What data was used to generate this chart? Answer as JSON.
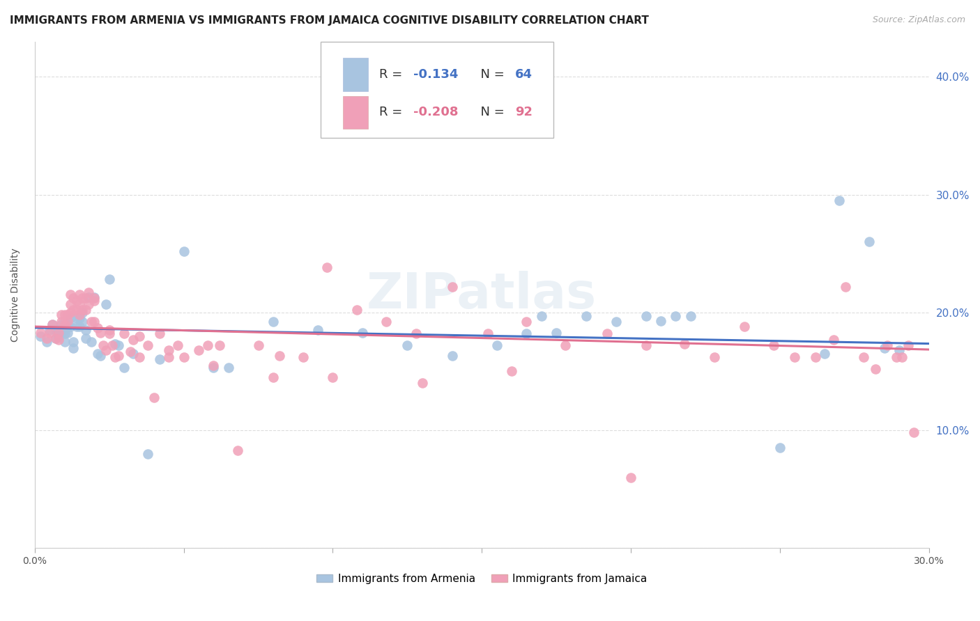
{
  "title": "IMMIGRANTS FROM ARMENIA VS IMMIGRANTS FROM JAMAICA COGNITIVE DISABILITY CORRELATION CHART",
  "source": "Source: ZipAtlas.com",
  "ylabel": "Cognitive Disability",
  "ytick_values": [
    0.0,
    0.1,
    0.2,
    0.3,
    0.4
  ],
  "ytick_labels": [
    "",
    "10.0%",
    "20.0%",
    "30.0%",
    "40.0%"
  ],
  "xtick_values": [
    0.0,
    0.05,
    0.1,
    0.15,
    0.2,
    0.25,
    0.3
  ],
  "xlim": [
    0.0,
    0.3
  ],
  "ylim": [
    0.0,
    0.43
  ],
  "armenia_color": "#a8c4e0",
  "jamaica_color": "#f0a0b8",
  "armenia_line_color": "#4472c4",
  "jamaica_line_color": "#e07090",
  "armenia_R": -0.134,
  "armenia_N": 64,
  "jamaica_R": -0.208,
  "jamaica_N": 92,
  "watermark": "ZIPatlas",
  "armenia_x": [
    0.002,
    0.004,
    0.005,
    0.006,
    0.007,
    0.007,
    0.008,
    0.008,
    0.009,
    0.009,
    0.01,
    0.01,
    0.01,
    0.011,
    0.011,
    0.012,
    0.012,
    0.013,
    0.013,
    0.014,
    0.014,
    0.015,
    0.015,
    0.016,
    0.016,
    0.017,
    0.017,
    0.018,
    0.019,
    0.02,
    0.021,
    0.022,
    0.024,
    0.025,
    0.027,
    0.028,
    0.03,
    0.033,
    0.038,
    0.042,
    0.05,
    0.06,
    0.065,
    0.08,
    0.095,
    0.11,
    0.125,
    0.14,
    0.155,
    0.165,
    0.17,
    0.175,
    0.185,
    0.195,
    0.205,
    0.21,
    0.215,
    0.22,
    0.25,
    0.265,
    0.27,
    0.28,
    0.285,
    0.29
  ],
  "armenia_y": [
    0.18,
    0.175,
    0.185,
    0.19,
    0.185,
    0.178,
    0.185,
    0.18,
    0.19,
    0.183,
    0.185,
    0.182,
    0.175,
    0.19,
    0.183,
    0.195,
    0.188,
    0.175,
    0.17,
    0.195,
    0.188,
    0.195,
    0.188,
    0.2,
    0.192,
    0.185,
    0.178,
    0.213,
    0.175,
    0.213,
    0.165,
    0.163,
    0.207,
    0.228,
    0.173,
    0.172,
    0.153,
    0.165,
    0.08,
    0.16,
    0.252,
    0.153,
    0.153,
    0.192,
    0.185,
    0.183,
    0.172,
    0.163,
    0.172,
    0.182,
    0.197,
    0.183,
    0.197,
    0.192,
    0.197,
    0.193,
    0.197,
    0.197,
    0.085,
    0.165,
    0.295,
    0.26,
    0.17,
    0.168
  ],
  "jamaica_x": [
    0.002,
    0.004,
    0.005,
    0.006,
    0.007,
    0.008,
    0.008,
    0.009,
    0.009,
    0.01,
    0.01,
    0.011,
    0.011,
    0.012,
    0.012,
    0.013,
    0.013,
    0.014,
    0.014,
    0.015,
    0.015,
    0.016,
    0.016,
    0.017,
    0.017,
    0.018,
    0.018,
    0.019,
    0.02,
    0.02,
    0.021,
    0.022,
    0.023,
    0.024,
    0.025,
    0.026,
    0.027,
    0.028,
    0.03,
    0.032,
    0.033,
    0.035,
    0.038,
    0.04,
    0.042,
    0.045,
    0.048,
    0.05,
    0.055,
    0.058,
    0.062,
    0.068,
    0.075,
    0.082,
    0.09,
    0.098,
    0.108,
    0.118,
    0.128,
    0.14,
    0.152,
    0.165,
    0.178,
    0.192,
    0.205,
    0.218,
    0.228,
    0.238,
    0.248,
    0.255,
    0.262,
    0.268,
    0.272,
    0.278,
    0.282,
    0.286,
    0.289,
    0.291,
    0.293,
    0.295,
    0.012,
    0.015,
    0.02,
    0.025,
    0.035,
    0.045,
    0.06,
    0.08,
    0.1,
    0.13,
    0.16,
    0.2
  ],
  "jamaica_y": [
    0.183,
    0.178,
    0.183,
    0.19,
    0.178,
    0.183,
    0.177,
    0.198,
    0.192,
    0.198,
    0.19,
    0.198,
    0.193,
    0.207,
    0.2,
    0.212,
    0.202,
    0.21,
    0.202,
    0.207,
    0.198,
    0.212,
    0.202,
    0.212,
    0.202,
    0.217,
    0.207,
    0.192,
    0.212,
    0.192,
    0.187,
    0.183,
    0.172,
    0.168,
    0.182,
    0.172,
    0.162,
    0.163,
    0.182,
    0.167,
    0.177,
    0.162,
    0.172,
    0.128,
    0.182,
    0.162,
    0.172,
    0.162,
    0.168,
    0.172,
    0.172,
    0.083,
    0.172,
    0.163,
    0.162,
    0.238,
    0.202,
    0.192,
    0.182,
    0.222,
    0.182,
    0.192,
    0.172,
    0.182,
    0.172,
    0.173,
    0.162,
    0.188,
    0.172,
    0.162,
    0.162,
    0.177,
    0.222,
    0.162,
    0.152,
    0.172,
    0.162,
    0.162,
    0.172,
    0.098,
    0.215,
    0.215,
    0.21,
    0.185,
    0.18,
    0.168,
    0.155,
    0.145,
    0.145,
    0.14,
    0.15,
    0.06
  ],
  "background_color": "#ffffff",
  "grid_color": "#dddddd",
  "title_fontsize": 11,
  "source_fontsize": 9,
  "axis_label_fontsize": 10,
  "tick_fontsize": 10,
  "legend_fontsize": 13
}
